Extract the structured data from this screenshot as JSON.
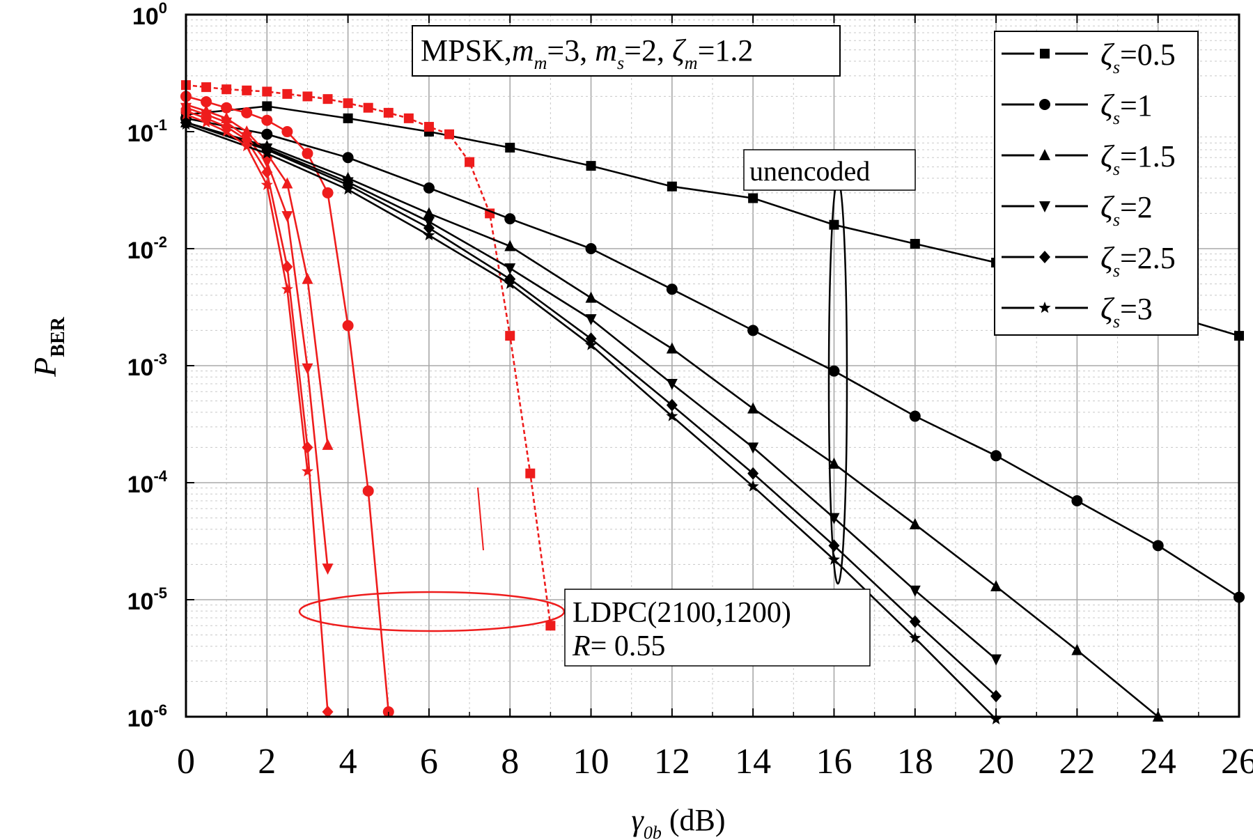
{
  "chart_data": {
    "type": "line",
    "xlabel": {
      "symbol": "γ",
      "sub": "0b",
      "unit": " (dB)"
    },
    "ylabel": {
      "symbol": "P",
      "sub": "BER"
    },
    "xlim": [
      0,
      26
    ],
    "ylim": [
      1e-06,
      1
    ],
    "yscale": "log",
    "grid": true,
    "legend_position": "top-right",
    "x_ticks": [
      "0",
      "2",
      "4",
      "6",
      "8",
      "10",
      "12",
      "14",
      "16",
      "18",
      "20",
      "22",
      "24",
      "26"
    ],
    "y_ticks": [
      {
        "base": "10",
        "exp": "0"
      },
      {
        "base": "10",
        "exp": "-1"
      },
      {
        "base": "10",
        "exp": "-2"
      },
      {
        "base": "10",
        "exp": "-3"
      },
      {
        "base": "10",
        "exp": "-4"
      },
      {
        "base": "10",
        "exp": "-5"
      },
      {
        "base": "10",
        "exp": "-6"
      }
    ],
    "param_box": {
      "scheme": "MPSK,",
      "mm_sym": "m",
      "mm_sub": "m",
      "mm_val": "=3, ",
      "ms_sym": "m",
      "ms_sub": "s",
      "ms_val": "=2, ",
      "zm_sym": "ζ",
      "zm_sub": "m",
      "zm_val": "=1.2"
    },
    "unencoded_label": "unencoded",
    "ldpc_label": {
      "line1": "LDPC(2100,1200)",
      "r_sym": "R",
      "r_val": "= 0.55"
    },
    "colors": {
      "unencoded": "#000000",
      "ldpc": "#ee1c1c",
      "grid_major": "#a8a8a8",
      "grid_minor": "#c8c8c8"
    },
    "series": [
      {
        "name": {
          "sym": "ζ",
          "sub": "s",
          "val": "=0.5"
        },
        "marker": "square",
        "unencoded": {
          "x": [
            0,
            2,
            4,
            6,
            8,
            10,
            12,
            14,
            16,
            18,
            20,
            22,
            24,
            26
          ],
          "y": [
            0.14,
            0.165,
            0.13,
            0.1,
            0.073,
            0.051,
            0.034,
            0.027,
            0.016,
            0.011,
            0.0076,
            0.0045,
            0.0029,
            0.0018
          ]
        },
        "ldpc": {
          "x": [
            0,
            0.5,
            1,
            1.5,
            2,
            2.5,
            3,
            3.5,
            4,
            4.5,
            5,
            5.5,
            6,
            6.5,
            7,
            7.5,
            8,
            8.5,
            9
          ],
          "y": [
            0.25,
            0.24,
            0.23,
            0.225,
            0.22,
            0.21,
            0.2,
            0.19,
            0.175,
            0.16,
            0.145,
            0.13,
            0.11,
            0.095,
            0.055,
            0.02,
            0.0018,
            0.00012,
            6e-06
          ]
        }
      },
      {
        "name": {
          "sym": "ζ",
          "sub": "s",
          "val": "=1"
        },
        "marker": "circle",
        "unencoded": {
          "x": [
            0,
            2,
            4,
            6,
            8,
            10,
            12,
            14,
            16,
            18,
            20,
            22,
            24,
            26
          ],
          "y": [
            0.13,
            0.095,
            0.06,
            0.033,
            0.018,
            0.01,
            0.0045,
            0.002,
            0.0009,
            0.00037,
            0.00017,
            7e-05,
            2.9e-05,
            1.05e-05
          ]
        },
        "ldpc": {
          "x": [
            0,
            0.5,
            1,
            1.5,
            2,
            2.5,
            3,
            3.5,
            4,
            4.5,
            5
          ],
          "y": [
            0.2,
            0.18,
            0.16,
            0.145,
            0.125,
            0.1,
            0.065,
            0.03,
            0.0022,
            8.5e-05,
            1.1e-06
          ]
        }
      },
      {
        "name": {
          "sym": "ζ",
          "sub": "s",
          "val": "=1.5"
        },
        "marker": "triangle-up",
        "unencoded": {
          "x": [
            0,
            2,
            4,
            6,
            8,
            10,
            12,
            14,
            16,
            18,
            20,
            22,
            24
          ],
          "y": [
            0.12,
            0.075,
            0.04,
            0.02,
            0.0105,
            0.0038,
            0.0014,
            0.00043,
            0.000145,
            4.4e-05,
            1.3e-05,
            3.7e-06,
            1e-06
          ]
        },
        "ldpc": {
          "x": [
            0,
            0.5,
            1,
            1.5,
            2,
            2.5,
            3,
            3.5
          ],
          "y": [
            0.17,
            0.15,
            0.13,
            0.1,
            0.065,
            0.036,
            0.0055,
            0.00021
          ]
        }
      },
      {
        "name": {
          "sym": "ζ",
          "sub": "s",
          "val": "=2"
        },
        "marker": "triangle-down",
        "unencoded": {
          "x": [
            0,
            2,
            4,
            6,
            8,
            10,
            12,
            14,
            16,
            18,
            20
          ],
          "y": [
            0.12,
            0.072,
            0.037,
            0.017,
            0.0068,
            0.0025,
            0.0007,
            0.0002,
            5e-05,
            1.2e-05,
            3.1e-06
          ]
        },
        "ldpc": {
          "x": [
            0,
            0.5,
            1,
            1.5,
            2,
            2.5,
            3,
            3.5
          ],
          "y": [
            0.16,
            0.14,
            0.12,
            0.09,
            0.055,
            0.019,
            0.00095,
            1.85e-05
          ]
        }
      },
      {
        "name": {
          "sym": "ζ",
          "sub": "s",
          "val": "=2.5"
        },
        "marker": "diamond",
        "unencoded": {
          "x": [
            0,
            2,
            4,
            6,
            8,
            10,
            12,
            14,
            16,
            18,
            20
          ],
          "y": [
            0.12,
            0.07,
            0.035,
            0.015,
            0.0055,
            0.0017,
            0.00046,
            0.00012,
            2.9e-05,
            6.5e-06,
            1.5e-06
          ]
        },
        "ldpc": {
          "x": [
            0,
            0.5,
            1,
            1.5,
            2,
            2.5,
            3,
            3.5
          ],
          "y": [
            0.15,
            0.13,
            0.11,
            0.085,
            0.045,
            0.007,
            0.0002,
            1.1e-06
          ]
        }
      },
      {
        "name": {
          "sym": "ζ",
          "sub": "s",
          "val": "=3"
        },
        "marker": "star",
        "unencoded": {
          "x": [
            0,
            2,
            4,
            6,
            8,
            10,
            12,
            14,
            16,
            18,
            20
          ],
          "y": [
            0.115,
            0.065,
            0.032,
            0.013,
            0.005,
            0.0015,
            0.00037,
            9.3e-05,
            2.2e-05,
            4.7e-06,
            9.5e-07
          ]
        },
        "ldpc": {
          "x": [
            0,
            0.5,
            1,
            1.5,
            2,
            2.5,
            3
          ],
          "y": [
            0.14,
            0.12,
            0.1,
            0.075,
            0.035,
            0.0045,
            0.000125
          ]
        }
      }
    ]
  }
}
